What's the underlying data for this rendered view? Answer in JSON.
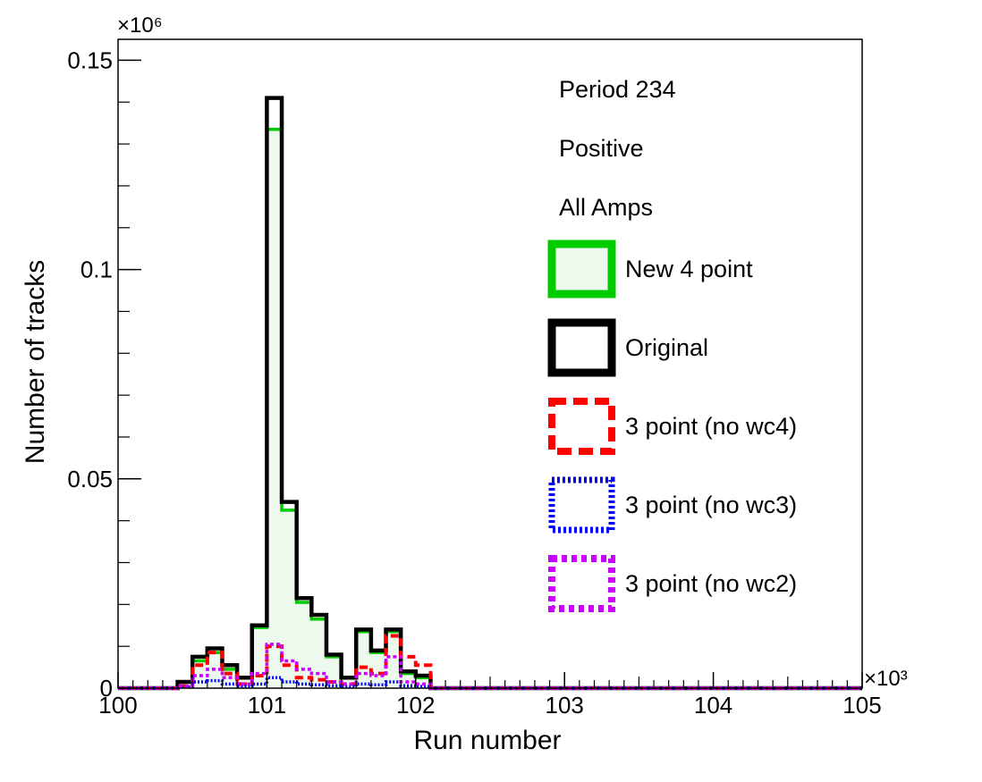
{
  "chart_data": {
    "type": "histogram",
    "xlabel": "Run number",
    "ylabel": "Number of tracks",
    "x_multiplier": "×10³",
    "y_multiplier": "×10⁶",
    "x_units": "thousand runs",
    "y_units": "million tracks",
    "xlim": [
      100,
      105
    ],
    "ylim": [
      0,
      0.155
    ],
    "x_ticks": [
      100,
      101,
      102,
      103,
      104,
      105
    ],
    "x_tick_labels": [
      "100",
      "101",
      "102",
      "103",
      "104",
      "105"
    ],
    "y_ticks": [
      0,
      0.05,
      0.1,
      0.15
    ],
    "y_tick_labels": [
      "0",
      "0.05",
      "0.1",
      "0.15"
    ],
    "bin_edges": [
      100.4,
      100.5,
      100.6,
      100.7,
      100.8,
      100.9,
      101.0,
      101.1,
      101.2,
      101.3,
      101.4,
      101.5,
      101.6,
      101.7,
      101.8,
      101.9,
      102.0,
      102.1
    ],
    "legend_position": "top-right",
    "annotations": [
      "Period 234",
      "Positive",
      "All Amps"
    ],
    "series": [
      {
        "name": "New 4 point",
        "color": "#00cc00",
        "style": "solid-filled",
        "fill": "#eef9ee",
        "values": [
          0.0015,
          0.0065,
          0.0085,
          0.0045,
          0.0025,
          0.0145,
          0.1335,
          0.0425,
          0.0205,
          0.0165,
          0.0075,
          0.0025,
          0.0135,
          0.0085,
          0.0135,
          0.0035,
          0.0025
        ]
      },
      {
        "name": "Original",
        "color": "#000000",
        "style": "solid",
        "values": [
          0.0015,
          0.0075,
          0.0095,
          0.0055,
          0.0025,
          0.015,
          0.141,
          0.0445,
          0.0215,
          0.0175,
          0.008,
          0.0025,
          0.014,
          0.009,
          0.014,
          0.004,
          0.003
        ]
      },
      {
        "name": "3 point (no wc4)",
        "color": "#ff0000",
        "style": "dashed",
        "values": [
          0.0005,
          0.0055,
          0.0085,
          0.0035,
          0.001,
          0.003,
          0.01,
          0.0055,
          0.0025,
          0.002,
          0.0015,
          0.001,
          0.005,
          0.0035,
          0.0125,
          0.0075,
          0.0055
        ]
      },
      {
        "name": "3 point (no wc3)",
        "color": "#0000ff",
        "style": "dotted",
        "values": [
          0.0003,
          0.0015,
          0.0018,
          0.001,
          0.0005,
          0.001,
          0.0025,
          0.0015,
          0.001,
          0.0008,
          0.0006,
          0.0004,
          0.001,
          0.0008,
          0.0015,
          0.0006,
          0.0004
        ]
      },
      {
        "name": "3 point (no wc2)",
        "color": "#cc00ff",
        "style": "dotted-thick",
        "values": [
          0.0005,
          0.003,
          0.0045,
          0.0025,
          0.001,
          0.0035,
          0.0105,
          0.0065,
          0.0045,
          0.0035,
          0.0015,
          0.001,
          0.0035,
          0.003,
          0.0075,
          0.0015,
          0.001
        ]
      }
    ]
  }
}
